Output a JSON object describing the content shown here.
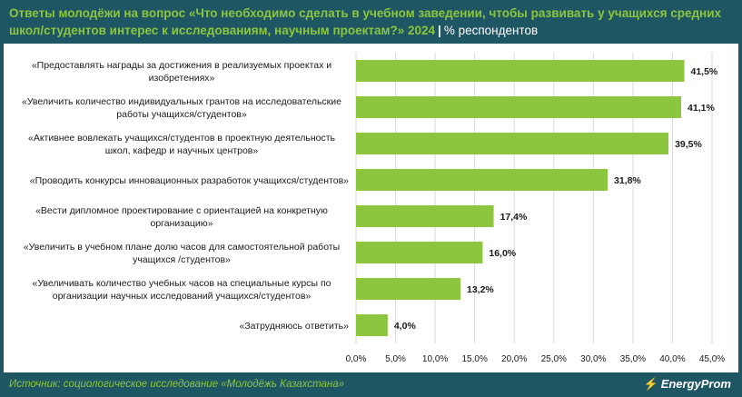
{
  "header": {
    "title_main": "Ответы молодёжи на вопрос «Что необходимо сделать в учебном заведении, чтобы развивать у учащихся средних школ/студентов интерес к исследованиям, научным проектам?» 2024",
    "separator": "|",
    "unit": "% респондентов"
  },
  "footer": {
    "source": "Источник: социологическое исследование «Молодёжь Казахстана»",
    "logo_text": "EnergyProm",
    "logo_icon": "lightning-icon"
  },
  "colors": {
    "background": "#1f5663",
    "bar": "#8cc63f",
    "accent": "#8cc63f",
    "grid": "#d9d9d9"
  },
  "chart_data": {
    "type": "bar",
    "orientation": "horizontal",
    "categories": [
      [
        "«Предоставлять награды за достижения в реализуемых проектах и",
        "изобретениях»"
      ],
      [
        "«Увеличить количество индивидуальных грантов на исследовательские",
        "работы учащихся/студентов»"
      ],
      [
        "«Активнее вовлекать учащихся/студентов в проектную деятельность",
        "школ, кафедр и научных центров»"
      ],
      [
        "«Проводить конкурсы инновационных разработок учащихся/студентов»"
      ],
      [
        "«Вести дипломное проектирование с ориентацией на конкретную",
        "организацию»"
      ],
      [
        "«Увеличить в учебном плане долю часов для самостоятельной работы",
        "учащихся /студентов»"
      ],
      [
        "«Увеличивать количество учебных часов на специальные курсы по",
        "организации научных исследований учащихся/студентов»"
      ],
      [
        "«Затрудняюсь ответить»"
      ]
    ],
    "values": [
      41.5,
      41.1,
      39.5,
      31.8,
      17.4,
      16.0,
      13.2,
      4.0
    ],
    "value_labels": [
      "41,5%",
      "41,1%",
      "39,5%",
      "31,8%",
      "17,4%",
      "16,0%",
      "13,2%",
      "4,0%"
    ],
    "xlim": [
      0,
      45
    ],
    "xticks": [
      0,
      5,
      10,
      15,
      20,
      25,
      30,
      35,
      40,
      45
    ],
    "xtick_labels": [
      "0,0%",
      "5,0%",
      "10,0%",
      "15,0%",
      "20,0%",
      "25,0%",
      "30,0%",
      "35,0%",
      "40,0%",
      "45,0%"
    ],
    "grid": true
  }
}
